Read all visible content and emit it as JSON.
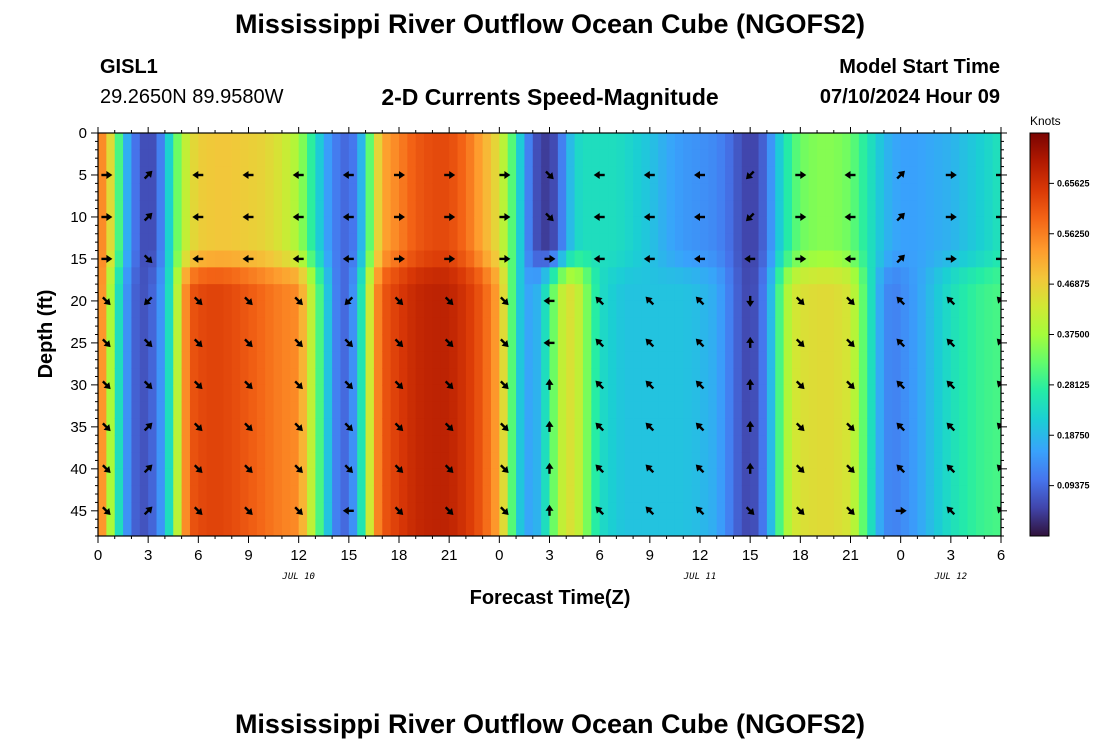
{
  "page": {
    "title": "Mississippi River Outflow Ocean Cube (NGOFS2)",
    "title_repeat": "Mississippi River Outflow Ocean Cube (NGOFS2)",
    "station_id": "GISL1",
    "station_coords": "29.2650N  89.9580W",
    "model_start_label": "Model Start Time",
    "model_start_value": "07/10/2024 Hour 09"
  },
  "chart_data": {
    "type": "heatmap",
    "title": "2-D Currents Speed-Magnitude",
    "xlabel": "Forecast Time(Z)",
    "ylabel": "Depth (ft)",
    "colorbar_unit": "Knots",
    "x_range_hours": [
      0,
      54
    ],
    "x_ticks": [
      {
        "h": 0,
        "label": "0"
      },
      {
        "h": 3,
        "label": "3"
      },
      {
        "h": 6,
        "label": "6"
      },
      {
        "h": 9,
        "label": "9"
      },
      {
        "h": 12,
        "label": "12"
      },
      {
        "h": 15,
        "label": "15"
      },
      {
        "h": 18,
        "label": "18"
      },
      {
        "h": 21,
        "label": "21"
      },
      {
        "h": 24,
        "label": "0"
      },
      {
        "h": 27,
        "label": "3"
      },
      {
        "h": 30,
        "label": "6"
      },
      {
        "h": 33,
        "label": "9"
      },
      {
        "h": 36,
        "label": "12"
      },
      {
        "h": 39,
        "label": "15"
      },
      {
        "h": 42,
        "label": "18"
      },
      {
        "h": 45,
        "label": "21"
      },
      {
        "h": 48,
        "label": "0"
      },
      {
        "h": 51,
        "label": "3"
      },
      {
        "h": 54,
        "label": "6"
      }
    ],
    "date_labels": [
      {
        "h": 12,
        "label": "JUL 10"
      },
      {
        "h": 36,
        "label": "JUL 11"
      },
      {
        "h": 51,
        "label": "JUL 12"
      }
    ],
    "y_range_ft": [
      0,
      48
    ],
    "y_ticks": [
      0,
      5,
      10,
      15,
      20,
      25,
      30,
      35,
      40,
      45
    ],
    "colorbar": {
      "range": [
        0,
        0.75
      ],
      "ticks": [
        0.09375,
        0.1875,
        0.28125,
        0.375,
        0.46875,
        0.5625,
        0.65625
      ],
      "tick_labels": [
        "0.09375",
        "0.18750",
        "0.28125",
        "0.37500",
        "0.46875",
        "0.56250",
        "0.65625"
      ]
    },
    "speed_knots": {
      "x_hours": [
        0,
        0.5,
        1,
        1.5,
        2,
        2.5,
        3,
        3.5,
        4,
        4.5,
        5,
        5.5,
        6,
        7,
        8,
        9,
        10,
        11,
        12,
        12.5,
        13,
        13.5,
        14,
        14.5,
        15,
        15.5,
        16,
        16.5,
        17,
        18,
        19,
        20,
        21,
        22,
        23,
        24,
        24.5,
        25,
        25.5,
        26,
        26.5,
        27,
        27.5,
        28,
        28.5,
        29,
        29.5,
        30,
        30.5,
        31,
        31.5,
        32,
        33,
        34,
        35,
        36,
        37,
        37.5,
        38,
        38.5,
        39,
        39.5,
        40,
        40.5,
        41,
        41.5,
        42,
        43,
        44,
        45,
        45.5,
        46,
        46.5,
        47,
        47.5,
        48,
        49,
        50,
        51,
        52,
        53,
        54
      ],
      "upper_0_15ft": [
        0.58,
        0.52,
        0.38,
        0.22,
        0.13,
        0.08,
        0.05,
        0.08,
        0.16,
        0.28,
        0.38,
        0.44,
        0.47,
        0.48,
        0.48,
        0.47,
        0.46,
        0.43,
        0.38,
        0.31,
        0.24,
        0.18,
        0.13,
        0.1,
        0.09,
        0.13,
        0.24,
        0.4,
        0.52,
        0.56,
        0.6,
        0.62,
        0.62,
        0.58,
        0.52,
        0.44,
        0.36,
        0.26,
        0.16,
        0.08,
        0.05,
        0.04,
        0.08,
        0.16,
        0.22,
        0.24,
        0.24,
        0.24,
        0.24,
        0.24,
        0.23,
        0.22,
        0.2,
        0.17,
        0.15,
        0.14,
        0.13,
        0.11,
        0.09,
        0.06,
        0.05,
        0.06,
        0.11,
        0.18,
        0.24,
        0.29,
        0.33,
        0.35,
        0.35,
        0.33,
        0.29,
        0.26,
        0.22,
        0.19,
        0.17,
        0.16,
        0.16,
        0.17,
        0.18,
        0.2,
        0.22,
        0.25
      ],
      "lower_15_48ft": [
        0.62,
        0.46,
        0.3,
        0.18,
        0.1,
        0.07,
        0.07,
        0.11,
        0.18,
        0.3,
        0.5,
        0.6,
        0.62,
        0.63,
        0.62,
        0.6,
        0.58,
        0.56,
        0.55,
        0.46,
        0.35,
        0.25,
        0.15,
        0.09,
        0.1,
        0.18,
        0.33,
        0.52,
        0.6,
        0.64,
        0.67,
        0.68,
        0.68,
        0.65,
        0.6,
        0.52,
        0.38,
        0.24,
        0.17,
        0.16,
        0.2,
        0.28,
        0.38,
        0.44,
        0.44,
        0.38,
        0.3,
        0.24,
        0.22,
        0.21,
        0.2,
        0.2,
        0.2,
        0.2,
        0.2,
        0.19,
        0.17,
        0.14,
        0.1,
        0.07,
        0.05,
        0.08,
        0.14,
        0.24,
        0.36,
        0.42,
        0.44,
        0.45,
        0.45,
        0.43,
        0.36,
        0.28,
        0.2,
        0.14,
        0.12,
        0.13,
        0.16,
        0.2,
        0.24,
        0.27,
        0.29,
        0.3
      ]
    },
    "vectors": {
      "x_hours": [
        0.5,
        3,
        6,
        9,
        12,
        15,
        18,
        21,
        24.3,
        27,
        30,
        33,
        36,
        39,
        42,
        45,
        48,
        51,
        54
      ],
      "depths_ft": [
        5,
        10,
        15,
        20,
        25,
        30,
        35,
        40,
        45
      ],
      "angles_deg": [
        [
          0,
          45,
          180,
          180,
          180,
          180,
          0,
          0,
          0,
          -45,
          180,
          180,
          180,
          -135,
          0,
          180,
          45,
          0,
          0
        ],
        [
          0,
          45,
          180,
          180,
          180,
          180,
          0,
          0,
          0,
          -45,
          180,
          180,
          180,
          -135,
          0,
          180,
          45,
          0,
          0
        ],
        [
          0,
          -45,
          180,
          180,
          180,
          180,
          0,
          0,
          0,
          0,
          180,
          180,
          180,
          180,
          0,
          180,
          45,
          0,
          0
        ],
        [
          -45,
          -135,
          -45,
          -45,
          -45,
          -135,
          -45,
          -45,
          -45,
          180,
          135,
          135,
          135,
          -90,
          -45,
          -45,
          135,
          135,
          135
        ],
        [
          -45,
          -45,
          -45,
          -45,
          -45,
          -45,
          -45,
          -45,
          -45,
          180,
          135,
          135,
          135,
          90,
          -45,
          -45,
          135,
          135,
          135
        ],
        [
          -45,
          -45,
          -45,
          -45,
          -45,
          -45,
          -45,
          -45,
          -45,
          90,
          135,
          135,
          135,
          90,
          -45,
          -45,
          135,
          135,
          135
        ],
        [
          -45,
          45,
          -45,
          -45,
          -45,
          -45,
          -45,
          -45,
          -45,
          90,
          135,
          135,
          135,
          90,
          -45,
          -45,
          135,
          135,
          135
        ],
        [
          -45,
          45,
          -45,
          -45,
          -45,
          -45,
          -45,
          -45,
          -45,
          90,
          135,
          135,
          135,
          90,
          -45,
          -45,
          135,
          135,
          135
        ],
        [
          -45,
          45,
          -45,
          -45,
          -45,
          180,
          -45,
          -45,
          -45,
          90,
          135,
          135,
          135,
          -45,
          -45,
          -45,
          0,
          135,
          135
        ]
      ]
    }
  }
}
